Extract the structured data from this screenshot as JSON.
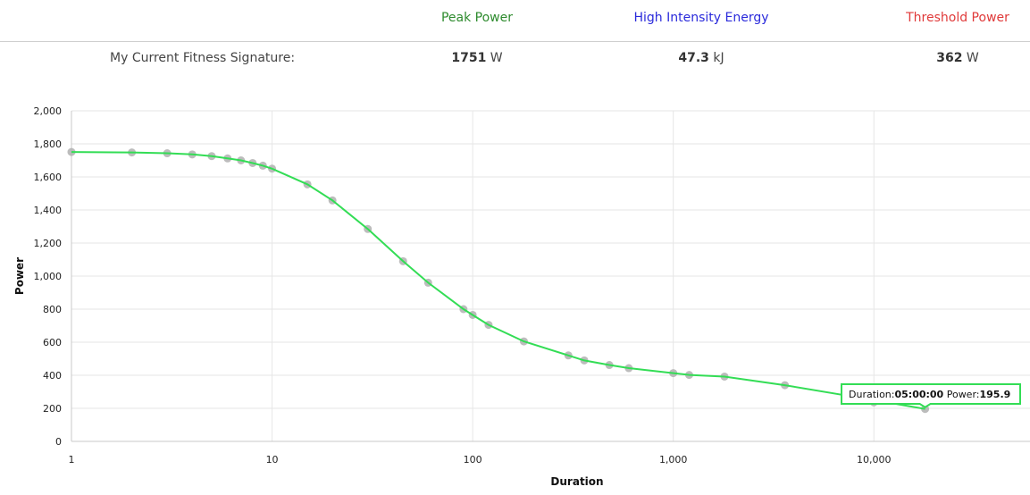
{
  "header": {
    "peak_power_label": "Peak Power",
    "high_intensity_label": "High Intensity Energy",
    "threshold_label": "Threshold Power",
    "peak_color": "#2e8b2e",
    "high_color": "#2a2adb",
    "threshold_color": "#e03a3a"
  },
  "signature": {
    "label": "My Current Fitness Signature:",
    "peak_value": "1751",
    "peak_unit": "W",
    "energy_value": "47.3",
    "energy_unit": "kJ",
    "threshold_value": "362",
    "threshold_unit": "W"
  },
  "chart_data": {
    "type": "scatter",
    "x_scale": "log",
    "xlabel": "Duration",
    "ylabel": "Power",
    "xlim": [
      1,
      60000
    ],
    "ylim": [
      0,
      2000
    ],
    "grid": true,
    "x_ticks": [
      1,
      10,
      100,
      1000,
      10000
    ],
    "x_tick_labels": [
      "1",
      "10",
      "100",
      "1,000",
      "10,000"
    ],
    "y_ticks": [
      0,
      200,
      400,
      600,
      800,
      1000,
      1200,
      1400,
      1600,
      1800,
      2000
    ],
    "y_tick_labels": [
      "0",
      "200",
      "400",
      "600",
      "800",
      "1,000",
      "1,200",
      "1,400",
      "1,600",
      "1,800",
      "2,000"
    ],
    "line_color": "#33dd55",
    "point_color": "#b0b0b0",
    "series": [
      {
        "name": "points",
        "x": [
          1,
          2,
          3,
          4,
          5,
          6,
          7,
          8,
          9,
          10,
          15,
          20,
          30,
          45,
          60,
          90,
          100,
          120,
          180,
          300,
          360,
          480,
          600,
          1000,
          1200,
          1800,
          3600,
          10000,
          18000
        ],
        "y": [
          1751,
          1748,
          1743,
          1736,
          1726,
          1712,
          1700,
          1684,
          1668,
          1650,
          1555,
          1458,
          1285,
          1090,
          960,
          800,
          765,
          705,
          605,
          520,
          490,
          462,
          443,
          413,
          402,
          392,
          340,
          236,
          196
        ]
      }
    ],
    "fit_line": {
      "x": [
        1,
        2,
        3,
        4,
        5,
        6,
        7,
        8,
        9,
        10,
        15,
        20,
        30,
        45,
        60,
        90,
        100,
        120,
        180,
        300,
        360,
        480,
        600,
        1000,
        1200,
        1800,
        3600,
        10000,
        18000
      ],
      "y": [
        1751,
        1748,
        1743,
        1736,
        1726,
        1712,
        1700,
        1684,
        1668,
        1650,
        1555,
        1458,
        1285,
        1090,
        960,
        800,
        765,
        705,
        605,
        520,
        490,
        462,
        443,
        413,
        402,
        392,
        340,
        250,
        196
      ]
    },
    "tooltip": {
      "duration_label": "Duration:",
      "duration_value": "05:00:00",
      "power_label": "Power:",
      "power_value": "195.9",
      "border_color": "#33dd55"
    }
  }
}
